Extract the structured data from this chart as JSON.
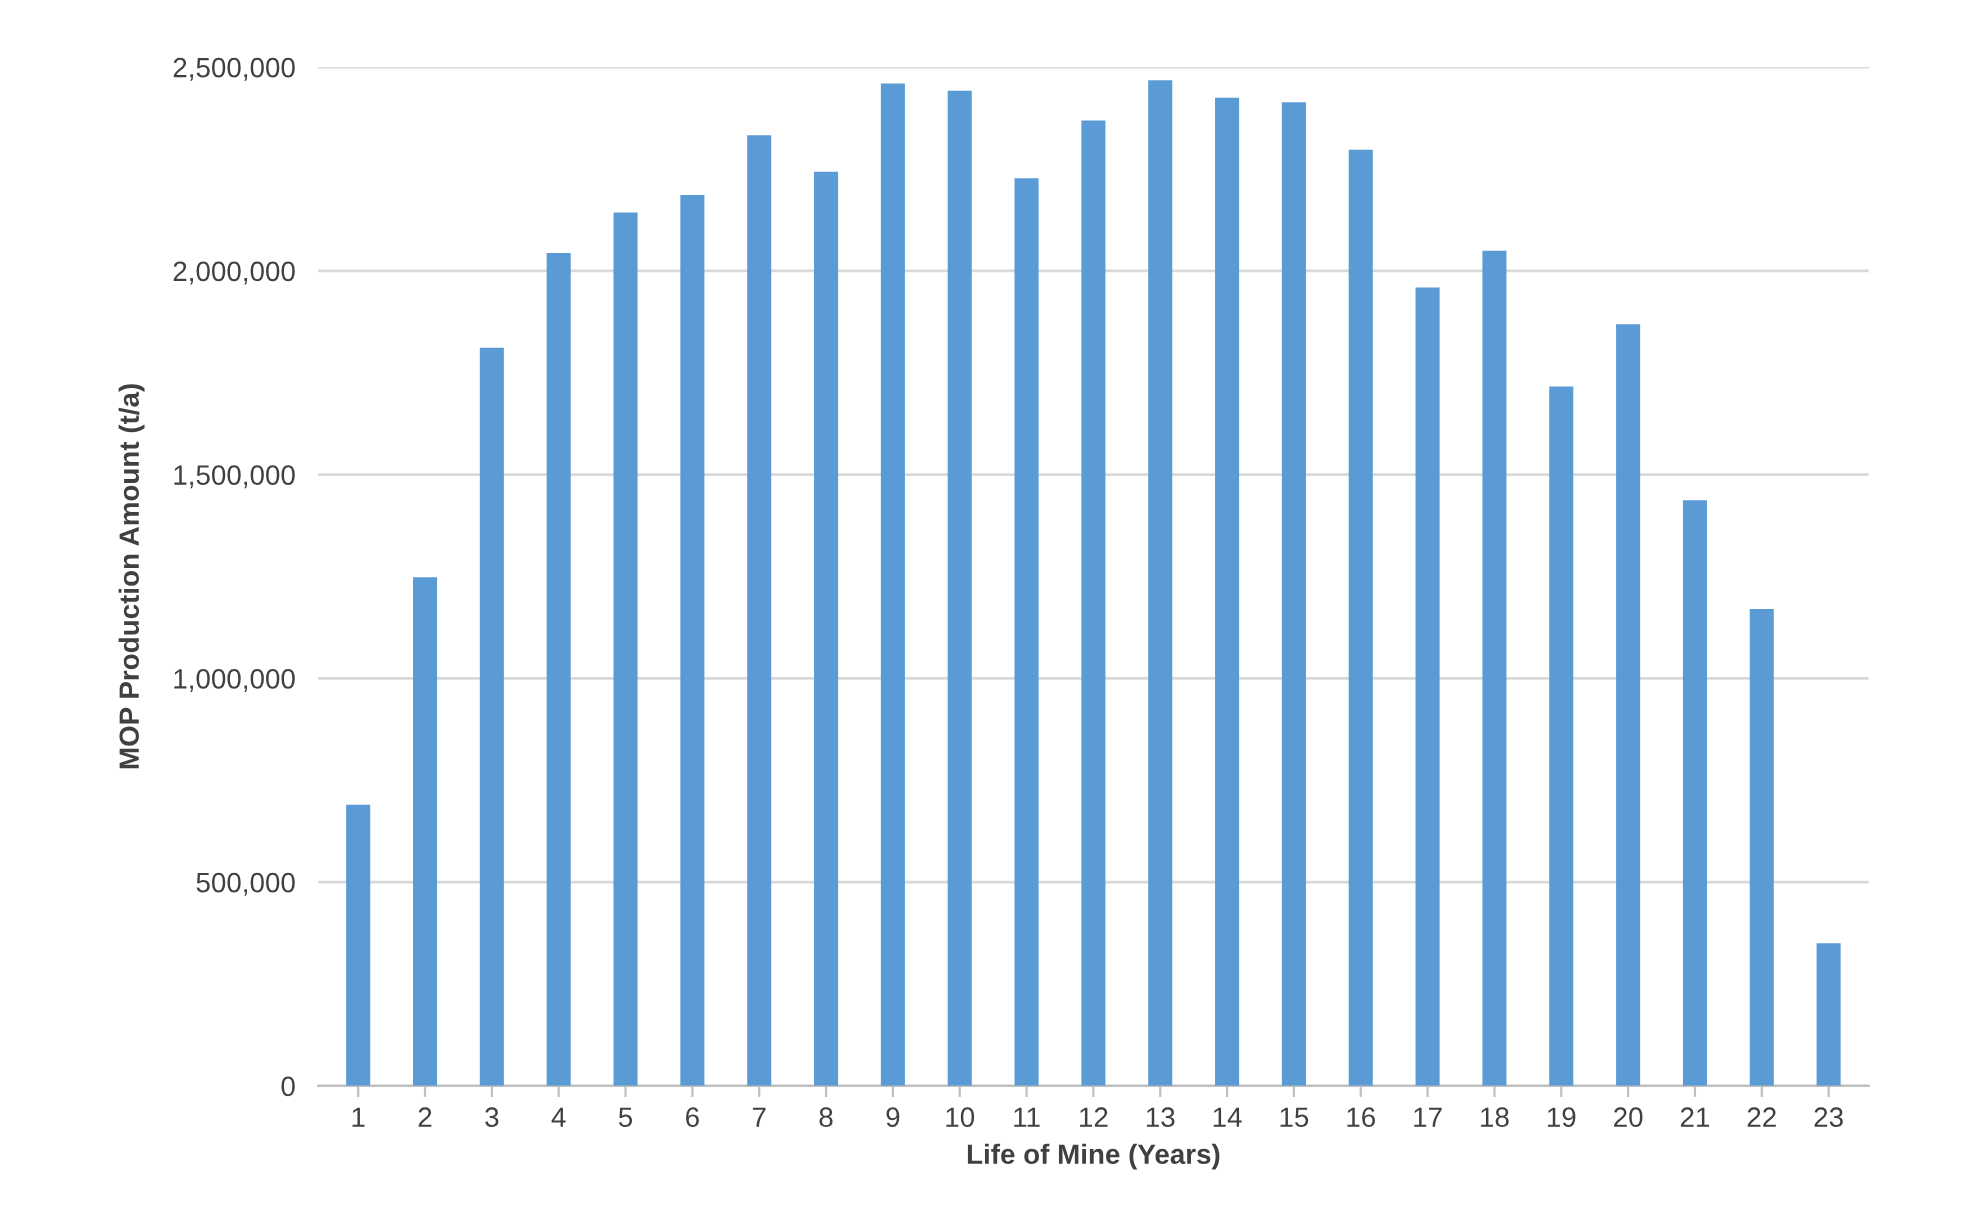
{
  "chart_data": {
    "type": "bar",
    "xlabel": "Life of Mine (Years)",
    "ylabel": "MOP Production Amount (t/a)",
    "categories": [
      "1",
      "2",
      "3",
      "4",
      "5",
      "6",
      "7",
      "8",
      "9",
      "10",
      "11",
      "12",
      "13",
      "14",
      "15",
      "16",
      "17",
      "18",
      "19",
      "20",
      "21",
      "22",
      "23"
    ],
    "values": [
      690000,
      1248000,
      1811000,
      2044000,
      2143000,
      2186000,
      2333000,
      2243000,
      2460000,
      2442000,
      2227000,
      2369000,
      2468000,
      2425000,
      2414000,
      2297000,
      1959000,
      2049000,
      1716000,
      1869000,
      1437000,
      1170000,
      350000
    ],
    "color": "#5b9bd5",
    "ylim": [
      0,
      2500000
    ],
    "yticks": [
      {
        "value": 0,
        "label": "0"
      },
      {
        "value": 500000,
        "label": "500,000"
      },
      {
        "value": 1000000,
        "label": "1,000,000"
      },
      {
        "value": 1500000,
        "label": "1,500,000"
      },
      {
        "value": 2000000,
        "label": "2,000,000"
      },
      {
        "value": 2500000,
        "label": "2,500,000"
      }
    ],
    "grid": "y"
  }
}
